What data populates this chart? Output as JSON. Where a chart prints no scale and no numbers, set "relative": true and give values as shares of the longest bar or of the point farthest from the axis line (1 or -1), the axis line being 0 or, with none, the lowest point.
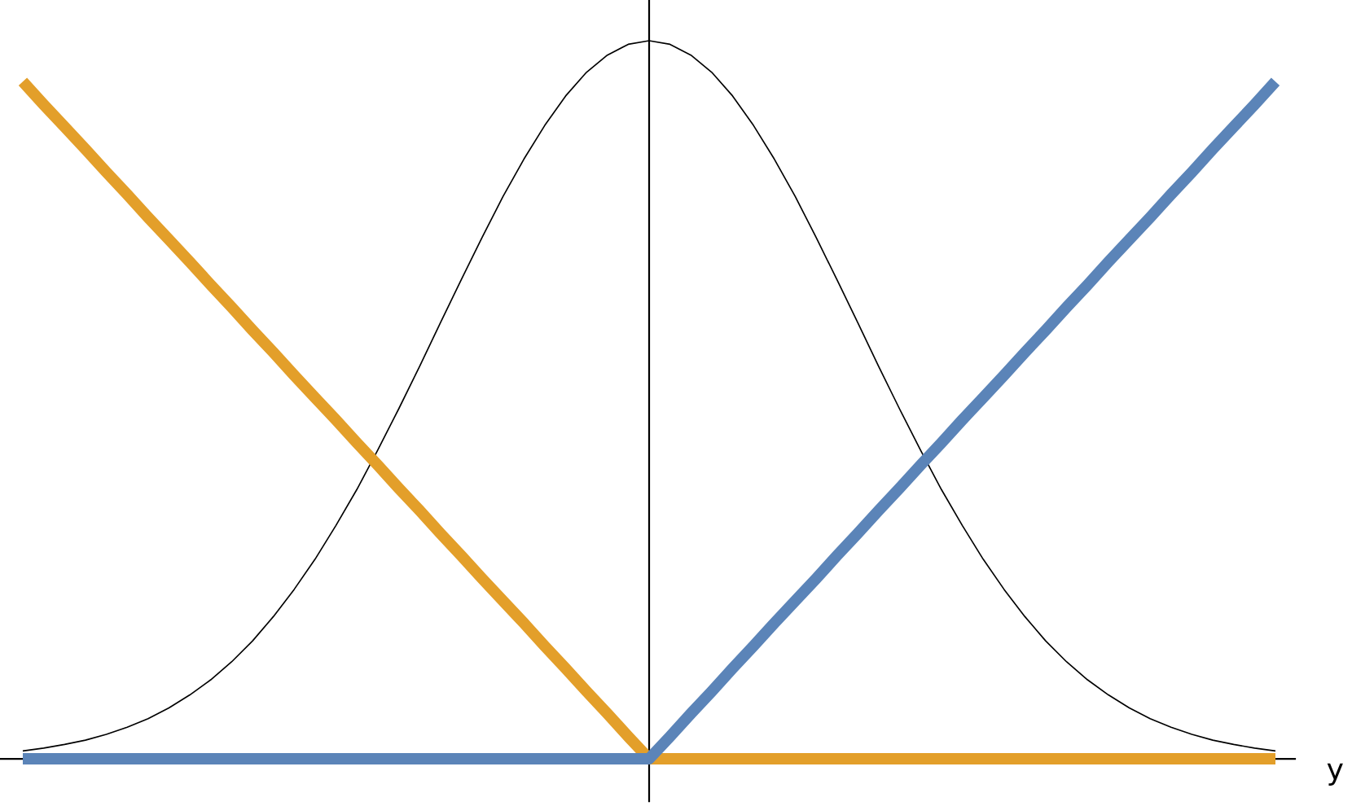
{
  "chart_data": {
    "type": "line",
    "relative": true,
    "xlabel": "y",
    "categories": [
      null,
      null,
      null,
      null,
      null,
      null,
      null,
      null,
      null,
      null,
      null,
      null,
      null,
      null,
      null,
      null,
      null,
      null,
      null,
      null,
      null,
      null,
      null,
      null,
      null,
      null,
      null,
      null,
      null,
      null,
      null,
      null,
      null,
      null,
      null,
      null,
      null,
      null,
      null,
      null,
      null,
      null,
      null,
      null,
      null,
      null,
      null,
      null,
      null,
      null,
      null,
      null,
      null,
      null,
      null,
      null,
      null,
      null,
      null,
      null,
      null
    ],
    "series": [
      {
        "color": "#000000",
        "values": [
          0.011,
          0.015,
          0.02,
          0.026,
          0.034,
          0.044,
          0.056,
          0.071,
          0.089,
          0.11,
          0.135,
          0.164,
          0.198,
          0.236,
          0.278,
          0.325,
          0.375,
          0.43,
          0.487,
          0.546,
          0.607,
          0.667,
          0.726,
          0.783,
          0.835,
          0.882,
          0.923,
          0.956,
          0.98,
          0.995,
          1,
          0.995,
          0.98,
          0.956,
          0.923,
          0.882,
          0.835,
          0.783,
          0.726,
          0.667,
          0.607,
          0.546,
          0.487,
          0.43,
          0.375,
          0.325,
          0.278,
          0.236,
          0.198,
          0.164,
          0.135,
          0.11,
          0.089,
          0.071,
          0.056,
          0.044,
          0.034,
          0.026,
          0.02,
          0.015,
          0.011
        ]
      },
      {
        "color": "#e39f2a",
        "values": [
          0.943,
          0.911,
          0.88,
          0.849,
          0.817,
          0.786,
          0.754,
          0.723,
          0.692,
          0.66,
          0.629,
          0.597,
          0.566,
          0.534,
          0.503,
          0.472,
          0.44,
          0.409,
          0.377,
          0.346,
          0.314,
          0.283,
          0.251,
          0.22,
          0.189,
          0.157,
          0.126,
          0.094,
          0.063,
          0.031,
          0,
          0,
          0,
          0,
          0,
          0,
          0,
          0,
          0,
          0,
          0,
          0,
          0,
          0,
          0,
          0,
          0,
          0,
          0,
          0,
          0,
          0,
          0,
          0,
          0,
          0,
          0,
          0,
          0,
          0,
          0
        ]
      },
      {
        "color": "#5b84b8",
        "values": [
          0,
          0,
          0,
          0,
          0,
          0,
          0,
          0,
          0,
          0,
          0,
          0,
          0,
          0,
          0,
          0,
          0,
          0,
          0,
          0,
          0,
          0,
          0,
          0,
          0,
          0,
          0,
          0,
          0,
          0,
          0,
          0.031,
          0.063,
          0.094,
          0.126,
          0.157,
          0.189,
          0.22,
          0.251,
          0.283,
          0.314,
          0.346,
          0.377,
          0.409,
          0.44,
          0.472,
          0.503,
          0.534,
          0.566,
          0.597,
          0.629,
          0.66,
          0.692,
          0.723,
          0.754,
          0.786,
          0.817,
          0.849,
          0.88,
          0.911,
          0.943
        ]
      }
    ]
  }
}
